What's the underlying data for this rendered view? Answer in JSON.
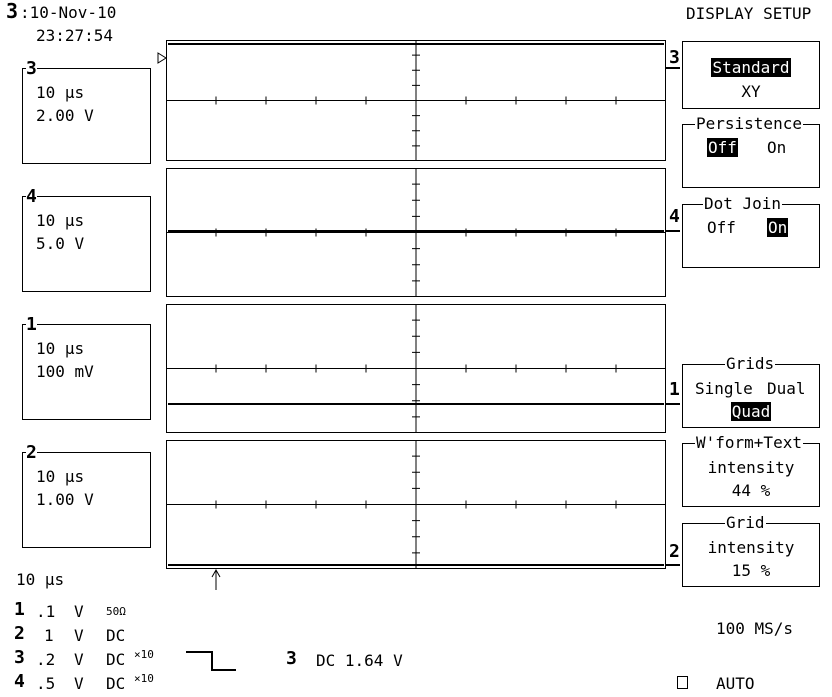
{
  "header": {
    "trace_num": "3",
    "date": ":10-Nov-10",
    "time": "23:27:54",
    "menu_title": "DISPLAY SETUP"
  },
  "channels": [
    {
      "id": "3",
      "timebase": "10 µs",
      "scale": "2.00 V"
    },
    {
      "id": "4",
      "timebase": "10 µs",
      "scale": "5.0 V"
    },
    {
      "id": "1",
      "timebase": "10 µs",
      "scale": "100 mV"
    },
    {
      "id": "2",
      "timebase": "10 µs",
      "scale": "1.00 V"
    }
  ],
  "timebase_bottom": "10 µs",
  "channel_summary": [
    {
      "num": "1",
      "volts": ".1",
      "unit": "V",
      "coupling": "50Ω"
    },
    {
      "num": "2",
      "volts": "1",
      "unit": "V",
      "coupling": "DC"
    },
    {
      "num": "3",
      "volts": ".2",
      "unit": "V",
      "coupling": "DC",
      "probe": "×10"
    },
    {
      "num": "4",
      "volts": ".5",
      "unit": "V",
      "coupling": "DC",
      "probe": "×10"
    }
  ],
  "trigger": {
    "channel": "3",
    "text": "DC 1.64 V"
  },
  "sample_rate": "100 MS/s",
  "trigger_mode": "AUTO",
  "markers": {
    "grid1": "3",
    "grid2": "4",
    "grid3": "1",
    "grid4": "2"
  },
  "menu": {
    "display_mode": {
      "selected": "Standard",
      "other": "XY"
    },
    "persistence": {
      "title": "Persistence",
      "off": "Off",
      "on": "On",
      "selected": "Off"
    },
    "dot_join": {
      "title": "Dot Join",
      "off": "Off",
      "on": "On",
      "selected": "On"
    },
    "grids": {
      "title": "Grids",
      "single": "Single",
      "dual": "Dual",
      "quad": "Quad",
      "selected": "Quad"
    },
    "wform_intensity": {
      "title": "W'form+Text",
      "label": "intensity",
      "value": "44 %"
    },
    "grid_intensity": {
      "title": "Grid",
      "label": "intensity",
      "value": "15 %"
    }
  }
}
